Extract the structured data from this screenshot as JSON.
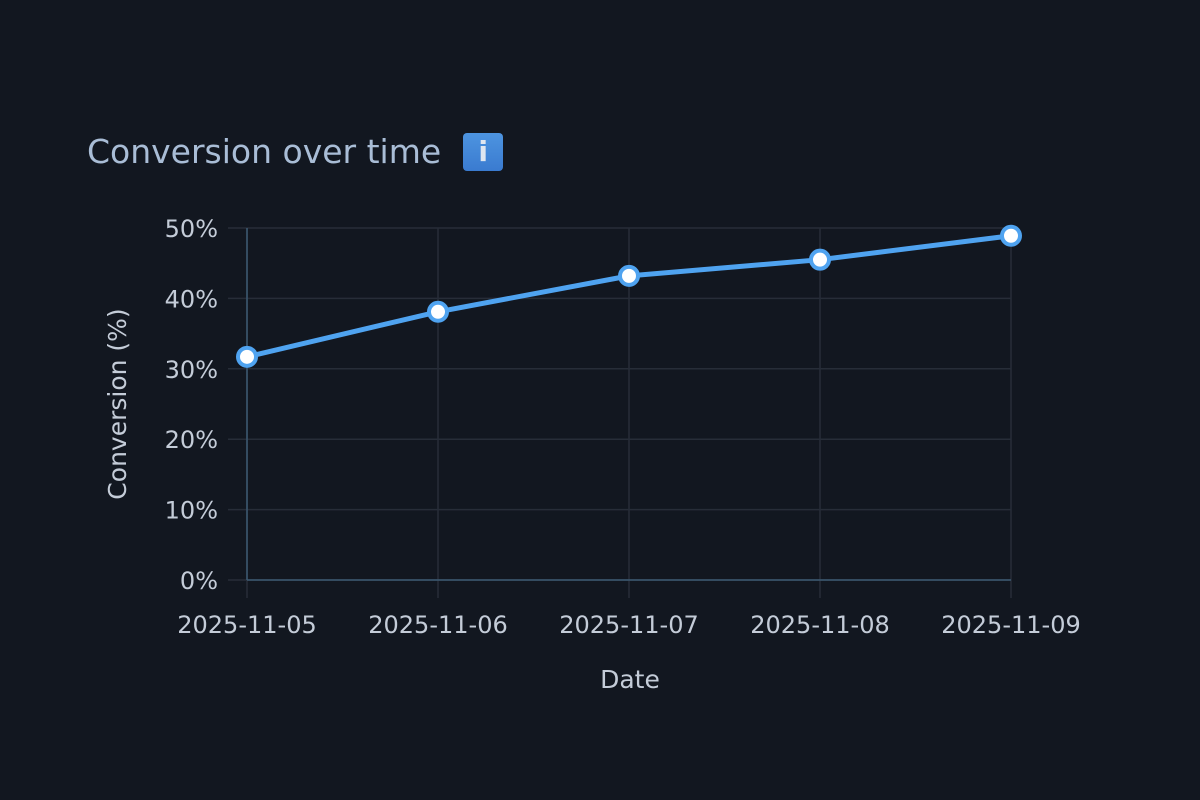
{
  "header": {
    "title": "Conversion over time",
    "info_icon": "info-icon"
  },
  "colors": {
    "background": "#121720",
    "line": "#4fa3f0",
    "marker_fill": "#ffffff",
    "grid": "#272d38",
    "axis": "#3d5a73",
    "text": "#c4ccd8",
    "title": "#a9bdd6",
    "info_badge": "#4289d8"
  },
  "chart_data": {
    "type": "line",
    "title": "Conversion over time",
    "xlabel": "Date",
    "ylabel": "Conversion (%)",
    "categories": [
      "2025-11-05",
      "2025-11-06",
      "2025-11-07",
      "2025-11-08",
      "2025-11-09"
    ],
    "series": [
      {
        "name": "Conversion",
        "values": [
          31.7,
          38.1,
          43.2,
          45.5,
          48.9
        ]
      }
    ],
    "ylim": [
      0,
      50
    ],
    "yticks": [
      0,
      10,
      20,
      30,
      40,
      50
    ],
    "ytick_labels": [
      "0%",
      "10%",
      "20%",
      "30%",
      "40%",
      "50%"
    ],
    "grid": true,
    "legend": false,
    "markers": true
  }
}
